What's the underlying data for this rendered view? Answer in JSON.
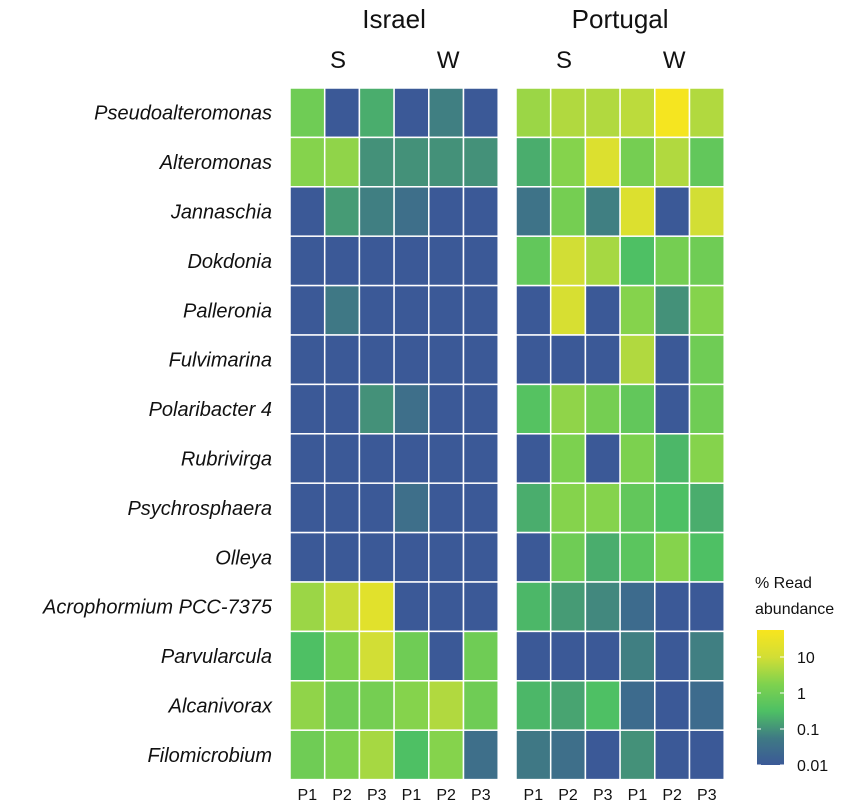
{
  "chart_data": {
    "type": "heatmap",
    "sites": [
      {
        "name": "Israel",
        "seasons": [
          "S",
          "W"
        ]
      },
      {
        "name": "Portugal",
        "seasons": [
          "S",
          "W"
        ]
      }
    ],
    "columns": [
      "P1",
      "P2",
      "P3",
      "P1",
      "P2",
      "P3"
    ],
    "rows": [
      "Pseudoalteromonas",
      "Alteromonas",
      "Jannaschia",
      "Dokdonia",
      "Palleronia",
      "Fulvimarina",
      "Polaribacter 4",
      "Rubrivirga",
      "Psychrosphaera",
      "Olleya",
      "Acrophormium PCC-7375",
      "Parvularcula",
      "Alcanivorax",
      "Filomicrobium"
    ],
    "color_scale": "log10",
    "values_log10": {
      "Israel": [
        [
          0.0,
          -2.0,
          -0.7,
          -2.0,
          -1.2,
          -2.0
        ],
        [
          0.3,
          0.4,
          -1.0,
          -1.0,
          -1.0,
          -1.0
        ],
        [
          -2.0,
          -0.9,
          -1.2,
          -1.5,
          -2.0,
          -2.0
        ],
        [
          -2.0,
          -2.0,
          -2.0,
          -2.0,
          -2.0,
          -2.0
        ],
        [
          -2.0,
          -1.3,
          -2.0,
          -2.0,
          -2.0,
          -2.0
        ],
        [
          -2.0,
          -2.0,
          -2.0,
          -2.0,
          -2.0,
          -2.0
        ],
        [
          -2.0,
          -2.0,
          -1.0,
          -1.5,
          -2.0,
          -2.0
        ],
        [
          -2.0,
          -2.0,
          -2.0,
          -2.0,
          -2.0,
          -2.0
        ],
        [
          -2.0,
          -2.0,
          -2.0,
          -1.5,
          -2.0,
          -2.0
        ],
        [
          -2.0,
          -2.0,
          -2.0,
          -2.0,
          -2.0,
          -2.0
        ],
        [
          0.5,
          0.9,
          1.3,
          -2.0,
          -2.0,
          -2.0
        ],
        [
          -0.5,
          0.2,
          1.0,
          0.0,
          -2.0,
          0.0
        ],
        [
          0.4,
          0.0,
          0.1,
          0.3,
          0.7,
          0.0
        ],
        [
          0.0,
          0.2,
          0.6,
          -0.5,
          0.3,
          -1.5
        ]
      ],
      "Portugal": [
        [
          0.5,
          0.7,
          0.7,
          0.8,
          1.7,
          0.7
        ],
        [
          -0.7,
          0.3,
          1.2,
          0.1,
          0.7,
          -0.2
        ],
        [
          -1.4,
          0.1,
          -1.2,
          1.2,
          -2.0,
          1.0
        ],
        [
          -0.2,
          1.0,
          0.6,
          -0.5,
          0.1,
          0.0
        ],
        [
          -2.0,
          1.1,
          -2.0,
          0.3,
          -1.0,
          0.3
        ],
        [
          -2.0,
          -2.0,
          -2.0,
          0.7,
          -2.0,
          0.0
        ],
        [
          -0.4,
          0.4,
          0.1,
          -0.2,
          -2.0,
          0.0
        ],
        [
          -2.0,
          0.2,
          -2.0,
          0.2,
          -0.6,
          0.3
        ],
        [
          -0.7,
          0.3,
          0.3,
          -0.2,
          -0.5,
          -0.7
        ],
        [
          -2.0,
          0.0,
          -0.7,
          -0.3,
          0.3,
          -0.5
        ],
        [
          -0.6,
          -0.9,
          -1.1,
          -1.6,
          -2.0,
          -2.0
        ],
        [
          -2.0,
          -2.0,
          -2.0,
          -1.2,
          -2.0,
          -1.2
        ],
        [
          -0.6,
          -0.8,
          -0.5,
          -1.6,
          -2.0,
          -1.6
        ],
        [
          -1.3,
          -1.5,
          -2.0,
          -1.0,
          -2.0,
          -2.0
        ]
      ]
    },
    "legend": {
      "title_line1": "% Read",
      "title_line2": "abundance",
      "ticks": [
        {
          "label": "10",
          "value": 1
        },
        {
          "label": "1",
          "value": 0
        },
        {
          "label": "0.1",
          "value": -1
        },
        {
          "label": "0.01",
          "value": -2
        }
      ],
      "range_log10": [
        -2.0,
        1.75
      ]
    }
  },
  "colors": {
    "stops": [
      "#3b5997",
      "#3f7a84",
      "#4ec064",
      "#7fd24e",
      "#d2de35",
      "#f8e51e"
    ],
    "gridline": "#ffffff"
  }
}
